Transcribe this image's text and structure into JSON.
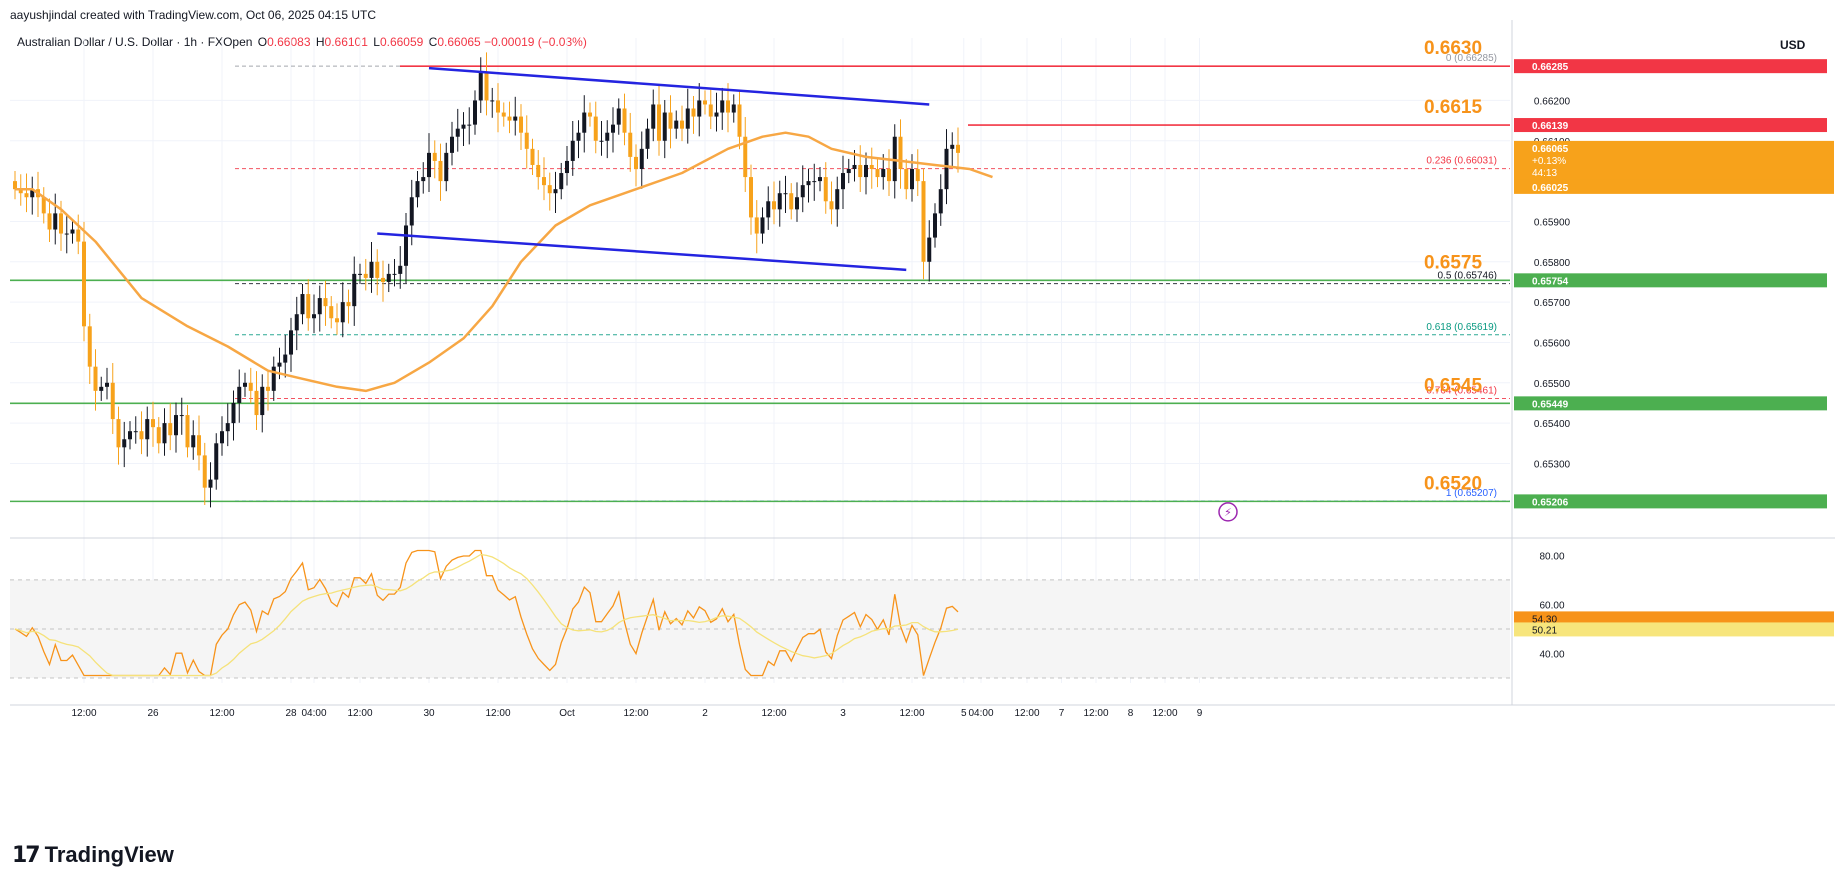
{
  "attribution": "aayushjindal created with TradingView.com, Oct 06, 2025 04:15 UTC",
  "header": {
    "symbol": "Australian Dollar / U.S. Dollar · 1h · FXOpen",
    "o_label": "O",
    "o_value": "0.66083",
    "h_label": "H",
    "h_value": "0.66101",
    "l_label": "L",
    "l_value": "0.66059",
    "c_label": "C",
    "c_value": "0.66065",
    "change": "−0.00019 (−0.03%)"
  },
  "currency": "USD",
  "brand": {
    "logo": "17",
    "name": "TradingView"
  },
  "colors": {
    "up": "#131722",
    "down": "#f7a21b",
    "ma": "#f7a744",
    "channel": "#2424e0",
    "support": "#4caf50",
    "resistance": "#f23645",
    "level_text": "#f7931a",
    "rsi": "#f7931a",
    "rsi_ma": "#f5e27a"
  },
  "chart_data": [
    {
      "type": "candlestick",
      "title": "Australian Dollar / U.S. Dollar · 1h · FXOpen",
      "ylim": [
        0.6514,
        0.6633
      ],
      "y_ticks": [
        "0.66200",
        "0.66100",
        "0.65900",
        "0.65800",
        "0.65700",
        "0.65600",
        "0.65500",
        "0.65400",
        "0.65300"
      ],
      "x_labels": [
        {
          "label": "12:00",
          "hour": 12
        },
        {
          "label": "26",
          "hour": 24
        },
        {
          "label": "12:00",
          "hour": 36
        },
        {
          "label": "28",
          "hour": 48
        },
        {
          "label": "04:00",
          "hour": 52
        },
        {
          "label": "12:00",
          "hour": 60
        },
        {
          "label": "30",
          "hour": 72
        },
        {
          "label": "12:00",
          "hour": 84
        },
        {
          "label": "Oct",
          "hour": 96
        },
        {
          "label": "12:00",
          "hour": 108
        },
        {
          "label": "2",
          "hour": 120
        },
        {
          "label": "12:00",
          "hour": 132
        },
        {
          "label": "3",
          "hour": 144
        },
        {
          "label": "12:00",
          "hour": 156
        },
        {
          "label": "5",
          "hour": 165
        },
        {
          "label": "04:00",
          "hour": 168
        },
        {
          "label": "12:00",
          "hour": 176
        },
        {
          "label": "7",
          "hour": 182
        },
        {
          "label": "12:00",
          "hour": 188
        },
        {
          "label": "8",
          "hour": 194
        },
        {
          "label": "12:00",
          "hour": 200
        },
        {
          "label": "9",
          "hour": 206
        }
      ],
      "ohlc_close": [
        0.6598,
        0.6597,
        0.6596,
        0.6598,
        0.6596,
        0.6592,
        0.6588,
        0.6592,
        0.6587,
        0.6587,
        0.6588,
        0.6585,
        0.6564,
        0.6554,
        0.6548,
        0.6549,
        0.655,
        0.6541,
        0.6534,
        0.6536,
        0.6538,
        0.6538,
        0.6536,
        0.6541,
        0.6539,
        0.6535,
        0.654,
        0.6537,
        0.6542,
        0.6542,
        0.6534,
        0.6537,
        0.6532,
        0.6524,
        0.6526,
        0.6535,
        0.6538,
        0.654,
        0.6545,
        0.6549,
        0.655,
        0.6548,
        0.6542,
        0.6549,
        0.6548,
        0.6554,
        0.6555,
        0.6557,
        0.6563,
        0.6567,
        0.6572,
        0.6566,
        0.6567,
        0.6571,
        0.6569,
        0.6566,
        0.6565,
        0.657,
        0.6569,
        0.6577,
        0.6577,
        0.6576,
        0.658,
        0.6576,
        0.6575,
        0.6577,
        0.6577,
        0.6579,
        0.6589,
        0.6596,
        0.66,
        0.6601,
        0.6607,
        0.6605,
        0.66,
        0.6607,
        0.6611,
        0.6613,
        0.6614,
        0.6614,
        0.662,
        0.6627,
        0.662,
        0.662,
        0.6617,
        0.6616,
        0.6615,
        0.6616,
        0.6612,
        0.6608,
        0.6604,
        0.6601,
        0.6599,
        0.6597,
        0.6598,
        0.6602,
        0.6605,
        0.661,
        0.6612,
        0.6617,
        0.6616,
        0.661,
        0.661,
        0.6612,
        0.6614,
        0.6618,
        0.6612,
        0.6606,
        0.6603,
        0.6608,
        0.6613,
        0.6619,
        0.661,
        0.6617,
        0.6613,
        0.6615,
        0.6613,
        0.6618,
        0.6616,
        0.662,
        0.6619,
        0.6616,
        0.6617,
        0.662,
        0.6617,
        0.6619,
        0.6611,
        0.6601,
        0.6591,
        0.6587,
        0.6591,
        0.6595,
        0.6593,
        0.6597,
        0.6597,
        0.6593,
        0.6596,
        0.6599,
        0.66,
        0.66,
        0.6601,
        0.6595,
        0.6593,
        0.6598,
        0.6602,
        0.6603,
        0.6604,
        0.6601,
        0.6604,
        0.6603,
        0.6601,
        0.6603,
        0.66,
        0.6611,
        0.6603,
        0.6598,
        0.6603,
        0.66,
        0.658,
        0.6586,
        0.6592,
        0.6598,
        0.6608,
        0.6609,
        0.6607
      ],
      "moving_average": {
        "name": "MA",
        "points": [
          [
            0,
            0.6598
          ],
          [
            3,
            0.6598
          ],
          [
            8,
            0.6593
          ],
          [
            14,
            0.6585
          ],
          [
            22,
            0.6571
          ],
          [
            30,
            0.6564
          ],
          [
            37,
            0.6559
          ],
          [
            44,
            0.6553
          ],
          [
            50,
            0.6551
          ],
          [
            56,
            0.6549
          ],
          [
            61,
            0.6548
          ],
          [
            66,
            0.655
          ],
          [
            72,
            0.6555
          ],
          [
            78,
            0.6561
          ],
          [
            83,
            0.6569
          ],
          [
            88,
            0.658
          ],
          [
            94,
            0.6589
          ],
          [
            100,
            0.6594
          ],
          [
            108,
            0.6598
          ],
          [
            116,
            0.6602
          ],
          [
            124,
            0.6608
          ],
          [
            130,
            0.6611
          ],
          [
            134,
            0.6612
          ],
          [
            138,
            0.6611
          ],
          [
            142,
            0.6608
          ],
          [
            148,
            0.6606
          ],
          [
            154,
            0.6605
          ],
          [
            160,
            0.6604
          ],
          [
            166,
            0.6603
          ],
          [
            170,
            0.6601
          ]
        ]
      },
      "channel": {
        "upper": [
          [
            72,
            0.6628
          ],
          [
            159,
            0.6619
          ]
        ],
        "lower": [
          [
            63,
            0.6587
          ],
          [
            155,
            0.6578
          ]
        ]
      },
      "fib": {
        "levels": [
          {
            "label": "0 (0.66285)",
            "value": 0.66285,
            "color": "#9598a1"
          },
          {
            "label": "0.236 (0.66031)",
            "value": 0.66031,
            "color": "#f23645"
          },
          {
            "label": "0.5 (0.65746)",
            "value": 0.65746,
            "color": "#131722"
          },
          {
            "label": "0.618 (0.65619)",
            "value": 0.65619,
            "color": "#089981"
          },
          {
            "label": "0.764 (0.65461)",
            "value": 0.65461,
            "color": "#f23645"
          },
          {
            "label": "1 (0.65207)",
            "value": 0.65207,
            "color": "#2962ff"
          }
        ]
      },
      "key_levels": [
        {
          "label": "0.6630",
          "value": 0.66285,
          "color": "#f23645"
        },
        {
          "label": "0.6615",
          "value": 0.66139,
          "color": "#f23645"
        },
        {
          "label": "0.6575",
          "value": 0.65754,
          "color": "#4caf50"
        },
        {
          "label": "0.6545",
          "value": 0.65449,
          "color": "#4caf50"
        },
        {
          "label": "0.6520",
          "value": 0.65206,
          "color": "#4caf50"
        }
      ],
      "price_tags": [
        {
          "text": "0.66285",
          "value": 0.66285,
          "bg": "#f23645"
        },
        {
          "text": "0.66139",
          "value": 0.66139,
          "bg": "#f23645"
        },
        {
          "text": "0.65754",
          "value": 0.65754,
          "bg": "#4caf50"
        },
        {
          "text": "0.65449",
          "value": 0.65449,
          "bg": "#4caf50"
        },
        {
          "text": "0.65206",
          "value": 0.65206,
          "bg": "#4caf50"
        }
      ],
      "last_price": {
        "price": "0.66065",
        "change": "+0.13%",
        "countdown": "44:13",
        "ma_value": "0.66025"
      }
    },
    {
      "type": "line",
      "name": "RSI",
      "ylim": [
        30,
        83
      ],
      "y_ticks": [
        "80.00",
        "60.00",
        "40.00"
      ],
      "bands": [
        70,
        50,
        30
      ],
      "rsi_value": "54.30",
      "rsi_ma_value": "50.21"
    }
  ]
}
